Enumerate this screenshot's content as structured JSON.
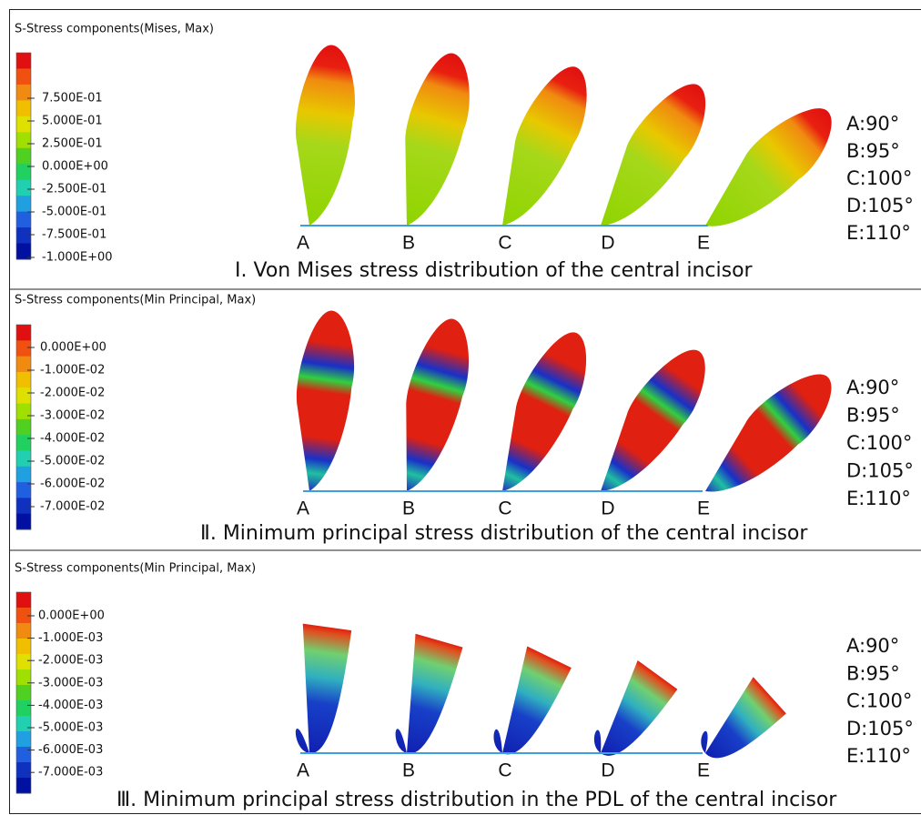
{
  "panels": [
    {
      "legend_title": "S-Stress components(Mises, Max)",
      "legend_labels": [
        "7.500E-01",
        "5.000E-01",
        "2.500E-01",
        "0.000E+00",
        "-2.500E-01",
        "-5.000E-01",
        "-7.500E-01",
        "-1.000E+00"
      ],
      "teeth": [
        "A",
        "B",
        "C",
        "D",
        "E"
      ],
      "angles": [
        "A:90°",
        "B:95°",
        "C:100°",
        "D:105°",
        "E:110°"
      ],
      "caption": "Ⅰ. Von Mises stress distribution of the central incisor"
    },
    {
      "legend_title": "S-Stress components(Min Principal, Max)",
      "legend_labels": [
        "0.000E+00",
        "-1.000E-02",
        "-2.000E-02",
        "-3.000E-02",
        "-4.000E-02",
        "-5.000E-02",
        "-6.000E-02",
        "-7.000E-02"
      ],
      "teeth": [
        "A",
        "B",
        "C",
        "D",
        "E"
      ],
      "angles": [
        "A:90°",
        "B:95°",
        "C:100°",
        "D:105°",
        "E:110°"
      ],
      "caption": "Ⅱ. Minimum principal stress distribution of the central incisor"
    },
    {
      "legend_title": "S-Stress components(Min Principal, Max)",
      "legend_labels": [
        "0.000E+00",
        "-1.000E-03",
        "-2.000E-03",
        "-3.000E-03",
        "-4.000E-03",
        "-5.000E-03",
        "-6.000E-03",
        "-7.000E-03"
      ],
      "teeth": [
        "A",
        "B",
        "C",
        "D",
        "E"
      ],
      "angles": [
        "A:90°",
        "B:95°",
        "C:100°",
        "D:105°",
        "E:110°"
      ],
      "caption": "Ⅲ. Minimum principal stress distribution in the PDL of the central incisor"
    }
  ]
}
